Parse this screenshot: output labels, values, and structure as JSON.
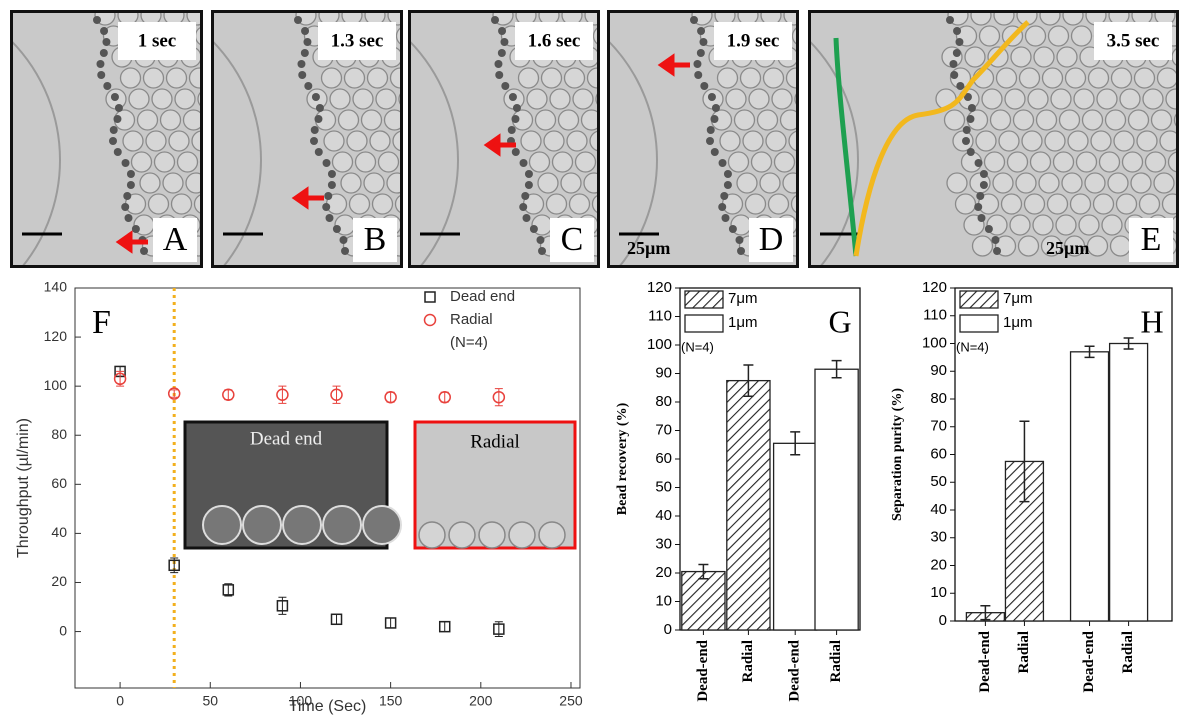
{
  "panels": [
    {
      "time": "1 sec",
      "letter": "A"
    },
    {
      "time": "1.3 sec",
      "letter": "B"
    },
    {
      "time": "1.6 sec",
      "letter": "C"
    },
    {
      "time": "1.9 sec",
      "letter": "D",
      "scale": "25µm"
    },
    {
      "time": "3.5 sec",
      "letter": "E",
      "scale": "25µm"
    }
  ],
  "chart_data": [
    {
      "type": "scatter",
      "letter": "F",
      "x_label": "Time (Sec)",
      "y_label": "Throughput (µl/min)",
      "xlim": [
        -25,
        255
      ],
      "xticks": [
        0,
        50,
        100,
        150,
        200,
        250
      ],
      "ylim": [
        -23,
        140
      ],
      "yticks": [
        0,
        20,
        40,
        60,
        80,
        100,
        120,
        140
      ],
      "vline": 30,
      "vline_color": "#f2b01e",
      "note": "(N=4)",
      "insets": [
        "Dead end",
        "Radial"
      ],
      "series": [
        {
          "name": "Dead end",
          "color": "#222222",
          "marker": "square",
          "x": [
            0,
            30,
            60,
            90,
            120,
            150,
            180,
            210
          ],
          "values": [
            106,
            27,
            17,
            10.5,
            5,
            3.5,
            2,
            1
          ],
          "errors": [
            2,
            3,
            2.5,
            3.5,
            2,
            2,
            2,
            3
          ]
        },
        {
          "name": "Radial",
          "color": "#e8413c",
          "marker": "circle",
          "x": [
            0,
            30,
            60,
            90,
            120,
            150,
            180,
            210
          ],
          "values": [
            103,
            97,
            96.5,
            96.5,
            96.5,
            95.5,
            95.5,
            95.5
          ],
          "errors": [
            3,
            1.5,
            2,
            3.5,
            3.5,
            2,
            2,
            3.5
          ]
        }
      ]
    },
    {
      "type": "bar",
      "letter": "G",
      "y_label": "Bead recovery (%)",
      "note": "(N=4)",
      "categories": [
        "Dead-end",
        "Radial",
        "Dead-end",
        "Radial"
      ],
      "ylim": [
        0,
        120
      ],
      "yticks": [
        0,
        10,
        20,
        30,
        40,
        50,
        60,
        70,
        80,
        90,
        100,
        110,
        120
      ],
      "series": [
        {
          "name": "7μm",
          "color": "#222222",
          "hatch": true,
          "values": [
            20.5,
            87.5,
            null,
            null
          ],
          "errors": [
            2.5,
            5.5,
            null,
            null
          ]
        },
        {
          "name": "1μm",
          "color": "#222222",
          "hatch": false,
          "values": [
            null,
            null,
            65.5,
            91.5
          ],
          "errors": [
            null,
            null,
            4,
            3
          ]
        }
      ]
    },
    {
      "type": "bar",
      "letter": "H",
      "y_label": "Separation purity (%)",
      "note": "(N=4)",
      "categories": [
        "Dead-end",
        "Radial",
        "Dead-end",
        "Radial"
      ],
      "ylim": [
        0,
        120
      ],
      "yticks": [
        0,
        10,
        20,
        30,
        40,
        50,
        60,
        70,
        80,
        90,
        100,
        110,
        120
      ],
      "series": [
        {
          "name": "7μm",
          "color": "#222222",
          "hatch": true,
          "values": [
            3,
            57.5,
            null,
            null
          ],
          "errors": [
            2.5,
            14.5,
            null,
            null
          ]
        },
        {
          "name": "1μm",
          "color": "#222222",
          "hatch": false,
          "values": [
            null,
            null,
            97,
            100
          ],
          "errors": [
            null,
            null,
            2,
            2
          ]
        }
      ]
    }
  ]
}
